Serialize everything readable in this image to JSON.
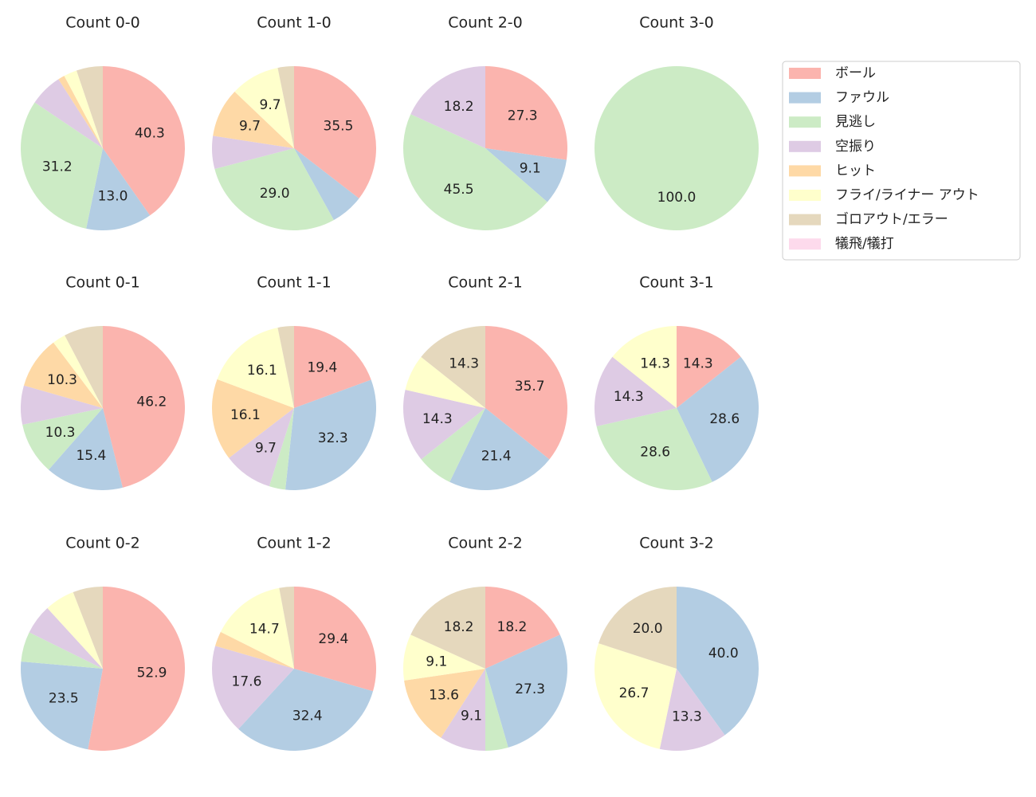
{
  "legend": {
    "labels": [
      "ボール",
      "ファウル",
      "見逃し",
      "空振り",
      "ヒット",
      "フライ/ライナー アウト",
      "ゴロアウト/エラー",
      "犠飛/犠打"
    ],
    "colors": [
      "#fbb4ae",
      "#b3cde3",
      "#ccebc5",
      "#decbe4",
      "#fed9a6",
      "#ffffcc",
      "#e5d8bd",
      "#fddaec"
    ]
  },
  "chart_data": [
    {
      "type": "pie",
      "title": "Count 0-0",
      "values": [
        40.3,
        13.0,
        31.2,
        6.5,
        1.3,
        2.6,
        5.2,
        0
      ],
      "value_labels": [
        "40.3",
        "13.0",
        "31.2",
        null,
        null,
        null,
        null,
        null
      ]
    },
    {
      "type": "pie",
      "title": "Count 1-0",
      "values": [
        35.5,
        6.5,
        29.0,
        6.5,
        9.7,
        9.7,
        3.2,
        0
      ],
      "value_labels": [
        "35.5",
        null,
        "29.0",
        null,
        "9.7",
        "9.7",
        null,
        null
      ]
    },
    {
      "type": "pie",
      "title": "Count 2-0",
      "values": [
        27.3,
        9.1,
        45.5,
        18.2,
        0,
        0,
        0,
        0
      ],
      "value_labels": [
        "27.3",
        "9.1",
        "45.5",
        "18.2",
        null,
        null,
        null,
        null
      ]
    },
    {
      "type": "pie",
      "title": "Count 3-0",
      "values": [
        0,
        0,
        100,
        0,
        0,
        0,
        0,
        0
      ],
      "value_labels": [
        null,
        null,
        "100.0",
        null,
        null,
        null,
        null,
        null
      ]
    },
    {
      "type": "pie",
      "title": "Count 0-1",
      "values": [
        46.2,
        15.4,
        10.3,
        7.7,
        10.3,
        2.6,
        7.7,
        0
      ],
      "value_labels": [
        "46.2",
        "15.4",
        "10.3",
        null,
        "10.3",
        null,
        null,
        null
      ]
    },
    {
      "type": "pie",
      "title": "Count 1-1",
      "values": [
        19.4,
        32.3,
        3.2,
        9.7,
        16.1,
        16.1,
        3.2,
        0
      ],
      "value_labels": [
        "19.4",
        "32.3",
        null,
        "9.7",
        "16.1",
        "16.1",
        null,
        null
      ]
    },
    {
      "type": "pie",
      "title": "Count 2-1",
      "values": [
        35.7,
        21.4,
        7.1,
        14.3,
        0,
        7.1,
        14.3,
        0
      ],
      "value_labels": [
        "35.7",
        "21.4",
        null,
        "14.3",
        null,
        null,
        "14.3",
        null
      ]
    },
    {
      "type": "pie",
      "title": "Count 3-1",
      "values": [
        14.3,
        28.6,
        28.6,
        14.3,
        0,
        14.3,
        0,
        0
      ],
      "value_labels": [
        "14.3",
        "28.6",
        "28.6",
        "14.3",
        null,
        "14.3",
        null,
        null
      ]
    },
    {
      "type": "pie",
      "title": "Count 0-2",
      "values": [
        52.9,
        23.5,
        5.9,
        5.9,
        0,
        5.9,
        5.9,
        0
      ],
      "value_labels": [
        "52.9",
        "23.5",
        null,
        null,
        null,
        null,
        null,
        null
      ]
    },
    {
      "type": "pie",
      "title": "Count 1-2",
      "values": [
        29.4,
        32.4,
        0,
        17.6,
        2.9,
        14.7,
        2.9,
        0
      ],
      "value_labels": [
        "29.4",
        "32.4",
        null,
        "17.6",
        null,
        "14.7",
        null,
        null
      ]
    },
    {
      "type": "pie",
      "title": "Count 2-2",
      "values": [
        18.2,
        27.3,
        4.5,
        9.1,
        13.6,
        9.1,
        18.2,
        0
      ],
      "value_labels": [
        "18.2",
        "27.3",
        null,
        "9.1",
        "13.6",
        "9.1",
        "18.2",
        null
      ]
    },
    {
      "type": "pie",
      "title": "Count 3-2",
      "values": [
        0,
        40.0,
        0,
        13.3,
        0,
        26.7,
        20.0,
        0
      ],
      "value_labels": [
        null,
        "40.0",
        null,
        "13.3",
        null,
        "26.7",
        "20.0",
        null
      ]
    }
  ]
}
